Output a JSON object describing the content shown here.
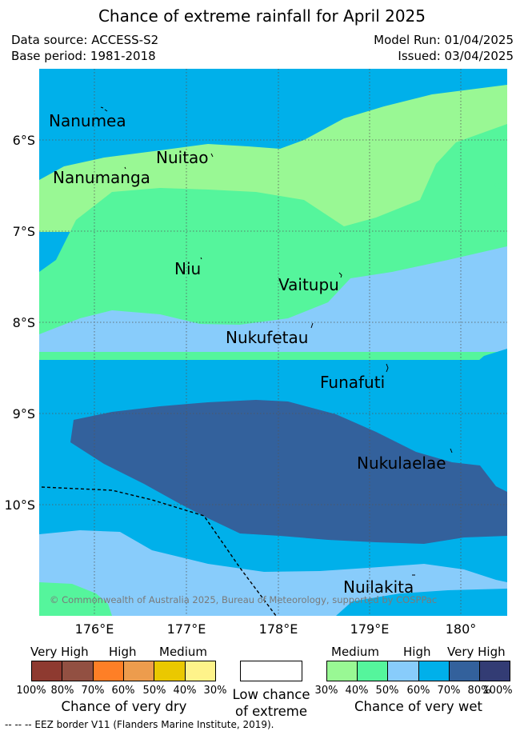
{
  "header": {
    "title": "Chance of extreme rainfall for April 2025",
    "data_source": "Data source: ACCESS-S2",
    "base_period": "Base period: 1981-2018",
    "model_run": "Model Run: 01/04/2025",
    "issued": "Issued: 03/04/2025"
  },
  "map": {
    "lon_labels": [
      "176°E",
      "177°E",
      "178°E",
      "179°E",
      "180°"
    ],
    "lat_labels": [
      "6°S",
      "7°S",
      "8°S",
      "9°S",
      "10°S"
    ],
    "places": [
      "Nanumea",
      "Nuitao",
      "Nanumanga",
      "Niu",
      "Vaitupu",
      "Nukufetau",
      "Funafuti",
      "Nukulaelae",
      "Nuilakita"
    ],
    "copyright": "© Commonwealth of Australia 2025, Bureau of Meteorology, supported by COSPPac",
    "colors": {
      "wet_medium_1": "#99f894",
      "wet_medium_2": "#55f59c",
      "wet_high_1": "#88ccfb",
      "wet_high_2": "#00b0ea",
      "wet_very_high_1": "#33619c",
      "wet_very_high_2": "#333c74",
      "dry_very_high_1": "#8e3a30",
      "dry_very_high_2": "#925042",
      "dry_high_1": "#fe7f26",
      "dry_high_2": "#ed9c4d",
      "dry_medium_1": "#eac800",
      "dry_medium_2": "#fef38a",
      "eez_line": "#000000"
    }
  },
  "legend": {
    "dry": {
      "headings": [
        "Very High",
        "High",
        "Medium"
      ],
      "ticks": [
        "100%",
        "80%",
        "70%",
        "60%",
        "50%",
        "40%",
        "30%"
      ],
      "caption": "Chance of very dry"
    },
    "low": {
      "caption_line1": "Low chance",
      "caption_line2": "of extreme"
    },
    "wet": {
      "headings": [
        "Medium",
        "High",
        "Very High"
      ],
      "ticks": [
        "30%",
        "40%",
        "50%",
        "60%",
        "70%",
        "80%",
        "100%"
      ],
      "caption": "Chance of very wet"
    },
    "eez_note": "--  --  -- EEZ border V11 (Flanders Marine Institute, 2019)."
  }
}
